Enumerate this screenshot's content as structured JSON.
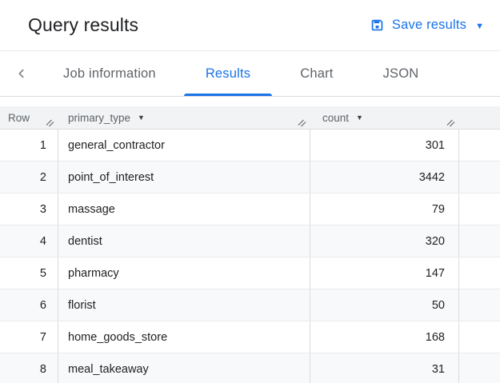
{
  "header": {
    "title": "Query results",
    "save_button": {
      "label": "Save results",
      "icon": "save-icon",
      "caret": "▼"
    }
  },
  "tabs": {
    "back_icon": "chevron-left",
    "items": [
      {
        "label": "Job information",
        "active": false
      },
      {
        "label": "Results",
        "active": true
      },
      {
        "label": "Chart",
        "active": false
      },
      {
        "label": "JSON",
        "active": false
      }
    ]
  },
  "colors": {
    "accent_blue": "#1a73e8",
    "text_dark": "#202124",
    "text_gray": "#5f6368",
    "table_header_bg": "#f1f3f4",
    "row_alt_bg": "#f8f9fa",
    "border": "#dadce0"
  },
  "table": {
    "columns": [
      {
        "key": "row",
        "label": "Row",
        "sortable": false
      },
      {
        "key": "primary_type",
        "label": "primary_type",
        "sortable": true,
        "caret": "▼"
      },
      {
        "key": "count",
        "label": "count",
        "sortable": true,
        "caret": "▼"
      }
    ],
    "rows": [
      {
        "row": 1,
        "primary_type": "general_contractor",
        "count": 301
      },
      {
        "row": 2,
        "primary_type": "point_of_interest",
        "count": 3442
      },
      {
        "row": 3,
        "primary_type": "massage",
        "count": 79
      },
      {
        "row": 4,
        "primary_type": "dentist",
        "count": 320
      },
      {
        "row": 5,
        "primary_type": "pharmacy",
        "count": 147
      },
      {
        "row": 6,
        "primary_type": "florist",
        "count": 50
      },
      {
        "row": 7,
        "primary_type": "home_goods_store",
        "count": 168
      },
      {
        "row": 8,
        "primary_type": "meal_takeaway",
        "count": 31
      }
    ]
  }
}
